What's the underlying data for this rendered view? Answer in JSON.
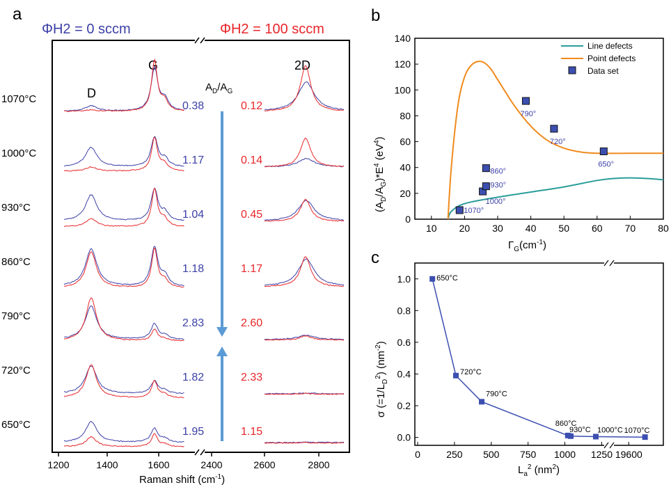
{
  "colors": {
    "blue": "#3b3fa6",
    "red": "#e8262a",
    "teal": "#2a9d9a",
    "orange": "#f08a1c",
    "marker": "#3c4fb0",
    "arrow": "#5b9bd5"
  },
  "panels": {
    "a": {
      "label": "a",
      "header_left": "ΦH2 = 0 sccm",
      "header_right": "ΦH2 = 100 sccm",
      "peak_labels": [
        "D",
        "G",
        "2D"
      ],
      "ratio_label": "AD/AG",
      "xlabel": "Raman shift (cm-1)",
      "xticks_left": [
        "1200",
        "1400",
        "1600"
      ],
      "xticks_right": [
        "2400",
        "2600",
        "2800"
      ],
      "temperatures": [
        "1070°C",
        "1000°C",
        "930°C",
        "860°C",
        "790°C",
        "720°C",
        "650°C"
      ],
      "ratios_0": [
        "0.38",
        "1.17",
        "1.04",
        "1.18",
        "2.83",
        "1.82",
        "1.95"
      ],
      "ratios_100": [
        "0.12",
        "0.14",
        "0.45",
        "1.17",
        "2.60",
        "2.33",
        "1.15"
      ]
    },
    "b": {
      "label": "b",
      "legend": [
        "Line defects",
        "Point defects",
        "Data set"
      ]
    },
    "c": {
      "label": "c"
    }
  },
  "chart_data": [
    {
      "panel": "b",
      "type": "scatter",
      "xlabel": "ΓG(cm-1)",
      "ylabel": "(AD/AG)*E4 (eV4)",
      "xlim": [
        5,
        80
      ],
      "ylim": [
        0,
        140
      ],
      "xticks": [
        10,
        20,
        30,
        40,
        50,
        60,
        70,
        80
      ],
      "yticks": [
        0,
        20,
        40,
        60,
        80,
        100,
        120,
        140
      ],
      "series": [
        {
          "name": "Line defects",
          "kind": "line",
          "x": [
            15,
            16,
            20,
            30,
            40,
            50,
            60,
            65,
            70,
            75,
            80
          ],
          "y": [
            0,
            6,
            12,
            17,
            21,
            25,
            30,
            31.5,
            32,
            31.5,
            30.5
          ]
        },
        {
          "name": "Point defects",
          "kind": "line",
          "x": [
            15,
            16,
            18,
            20,
            22,
            24,
            26,
            28,
            30,
            35,
            40,
            45,
            50,
            55,
            60,
            70,
            80
          ],
          "y": [
            0,
            40,
            88,
            110,
            119,
            122,
            121,
            116,
            108,
            88,
            72,
            61,
            55,
            52,
            51,
            51,
            51
          ]
        },
        {
          "name": "Data set",
          "kind": "points",
          "points": [
            {
              "x": 18.5,
              "y": 7,
              "label": "1070°"
            },
            {
              "x": 25.5,
              "y": 21.5,
              "label": "1000°"
            },
            {
              "x": 26.5,
              "y": 25.5,
              "label": "930°"
            },
            {
              "x": 26.5,
              "y": 39.5,
              "label": "860°"
            },
            {
              "x": 38.5,
              "y": 91.5,
              "label": "790°"
            },
            {
              "x": 47,
              "y": 70,
              "label": "720°"
            },
            {
              "x": 62,
              "y": 52.5,
              "label": "650°"
            }
          ]
        }
      ]
    },
    {
      "panel": "c",
      "type": "line",
      "xlabel": "La2 (nm2)",
      "ylabel": "σ (=1/LD2) (nm-2)",
      "ylim": [
        -0.05,
        1.1
      ],
      "yticks": [
        "0.0",
        "0.2",
        "0.4",
        "0.6",
        "0.8",
        "1.0"
      ],
      "xticks": [
        "0",
        "250",
        "500",
        "750",
        "1000",
        "1250",
        "19600"
      ],
      "x_break": true,
      "points": [
        {
          "x": 100,
          "y": 1.0,
          "label": "650°C"
        },
        {
          "x": 260,
          "y": 0.39,
          "label": "720°C"
        },
        {
          "x": 435,
          "y": 0.225,
          "label": "790°C"
        },
        {
          "x": 1020,
          "y": 0.012,
          "label": "860°C"
        },
        {
          "x": 1040,
          "y": 0.008,
          "label": "930°C"
        },
        {
          "x": 1210,
          "y": 0.005,
          "label": "1000°C"
        },
        {
          "x": 19800,
          "y": 0.002,
          "label": "1070°C"
        }
      ]
    }
  ]
}
